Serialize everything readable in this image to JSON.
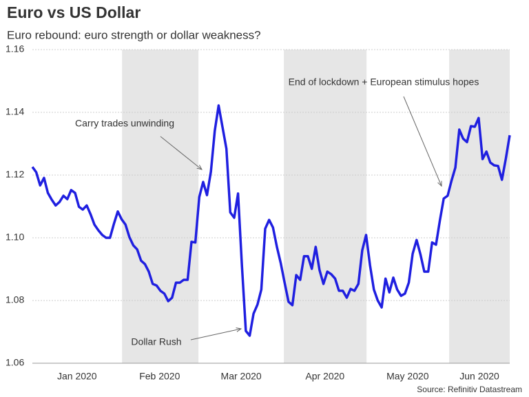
{
  "chart_data": {
    "type": "line",
    "title": "Euro vs US Dollar",
    "subtitle": "Euro rebound: euro strength or dollar weakness?",
    "source": "Source: Refinitiv Datastream",
    "series": [
      {
        "name": "EUR/USD",
        "color": "#1f1fe0",
        "values": [
          1.1226,
          1.1209,
          1.1167,
          1.1191,
          1.1143,
          1.1121,
          1.1103,
          1.1114,
          1.1134,
          1.1123,
          1.1152,
          1.1143,
          1.1099,
          1.109,
          1.1103,
          1.1075,
          1.1042,
          1.1024,
          1.1009,
          1.1,
          1.1,
          1.1044,
          1.1084,
          1.1059,
          1.1042,
          1.1002,
          1.0976,
          1.0963,
          1.0927,
          1.0916,
          1.0892,
          1.0853,
          1.0848,
          1.0831,
          1.0822,
          1.0798,
          1.0809,
          1.0857,
          1.0857,
          1.0866,
          1.0866,
          1.0987,
          1.0985,
          1.113,
          1.1178,
          1.1136,
          1.1211,
          1.1341,
          1.1422,
          1.1352,
          1.1284,
          1.1081,
          1.1064,
          1.1141,
          1.0912,
          1.0703,
          1.0688,
          1.0758,
          1.0787,
          1.0835,
          1.1029,
          1.1057,
          1.1033,
          1.0971,
          1.0919,
          1.0857,
          1.0796,
          1.0785,
          1.0881,
          1.0866,
          1.0941,
          1.0941,
          1.0901,
          1.0971,
          1.0897,
          1.0853,
          1.0892,
          1.0884,
          1.087,
          1.0831,
          1.0831,
          1.0809,
          1.0837,
          1.0831,
          1.0853,
          1.096,
          1.1009,
          1.0912,
          1.0835,
          1.08,
          1.0778,
          1.087,
          1.0826,
          1.0873,
          1.0835,
          1.0815,
          1.0822,
          1.0857,
          1.0949,
          1.0993,
          1.0947,
          1.0892,
          1.0892,
          1.0985,
          1.0978,
          1.1055,
          1.1125,
          1.1134,
          1.1182,
          1.1224,
          1.1345,
          1.1316,
          1.1305,
          1.1356,
          1.1354,
          1.1382,
          1.1251,
          1.1275,
          1.124,
          1.1231,
          1.1229,
          1.1185,
          1.1253,
          1.1327
        ]
      }
    ],
    "xlim": [
      0,
      123
    ],
    "xticks": [
      {
        "value": 11.5,
        "label": "Jan 2020"
      },
      {
        "value": 32.8,
        "label": "Feb 2020"
      },
      {
        "value": 53.8,
        "label": "Mar 2020"
      },
      {
        "value": 75.4,
        "label": "Apr 2020"
      },
      {
        "value": 96.7,
        "label": "May 2020"
      },
      {
        "value": 115.2,
        "label": "Jun 2020"
      }
    ],
    "shaded_bands": [
      [
        23.1,
        42.8
      ],
      [
        64.8,
        86.1
      ],
      [
        107.4,
        123
      ]
    ],
    "band_color": "#e6e6e6",
    "ylim": [
      1.06,
      1.16
    ],
    "yticks": [
      1.06,
      1.08,
      {
        "value": 1.1,
        "label": "1.10"
      },
      1.12,
      1.14,
      1.16
    ],
    "grid": true,
    "annotations": [
      "Carry trades unwinding",
      "Dollar Rush",
      "End of lockdown + European stimulus hopes"
    ]
  }
}
